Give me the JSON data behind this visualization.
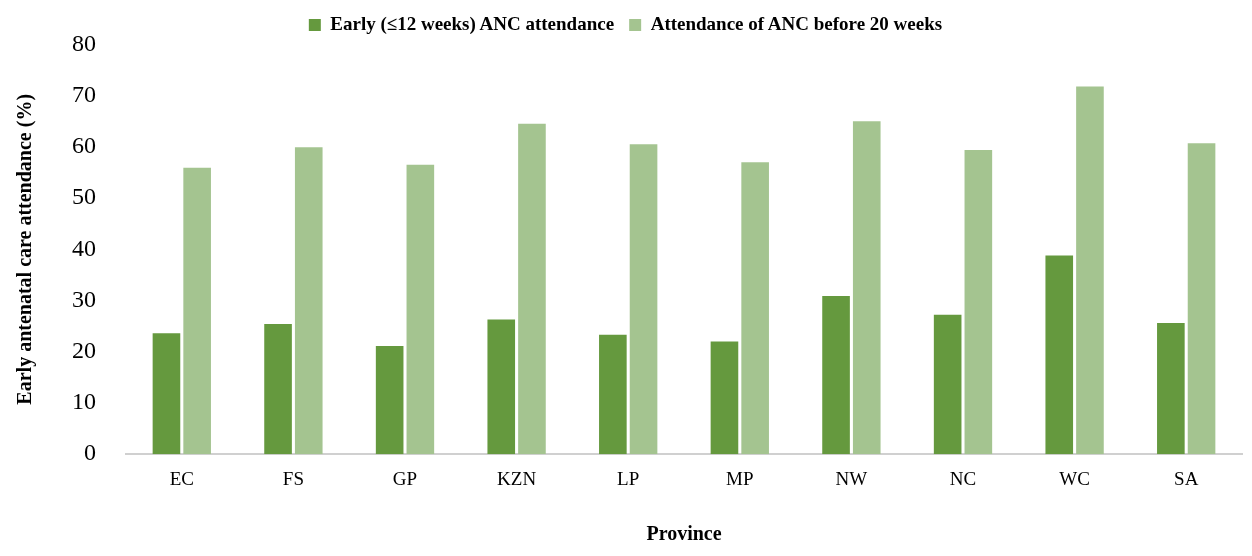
{
  "chart_data": {
    "type": "bar",
    "xlabel": "Province",
    "ylabel": "Early antenatal care attendance (%)",
    "categories": [
      "EC",
      "FS",
      "GP",
      "KZN",
      "LP",
      "MP",
      "NW",
      "NC",
      "WC",
      "SA"
    ],
    "series": [
      {
        "name": "Early (≤12 weeks) ANC attendance",
        "color": "#65993e",
        "values": [
          23.6,
          25.4,
          21.1,
          26.3,
          23.3,
          22.0,
          30.9,
          27.2,
          38.8,
          25.6
        ]
      },
      {
        "name": "Attendance of ANC before 20 weeks",
        "color": "#a4c490",
        "values": [
          55.9,
          59.9,
          56.5,
          64.5,
          60.5,
          57.0,
          65.0,
          59.4,
          71.8,
          60.7
        ]
      }
    ],
    "ylim": [
      0,
      80
    ],
    "yticks": [
      0,
      10,
      20,
      30,
      40,
      50,
      60,
      70,
      80
    ],
    "grid": false,
    "legend": "top"
  }
}
